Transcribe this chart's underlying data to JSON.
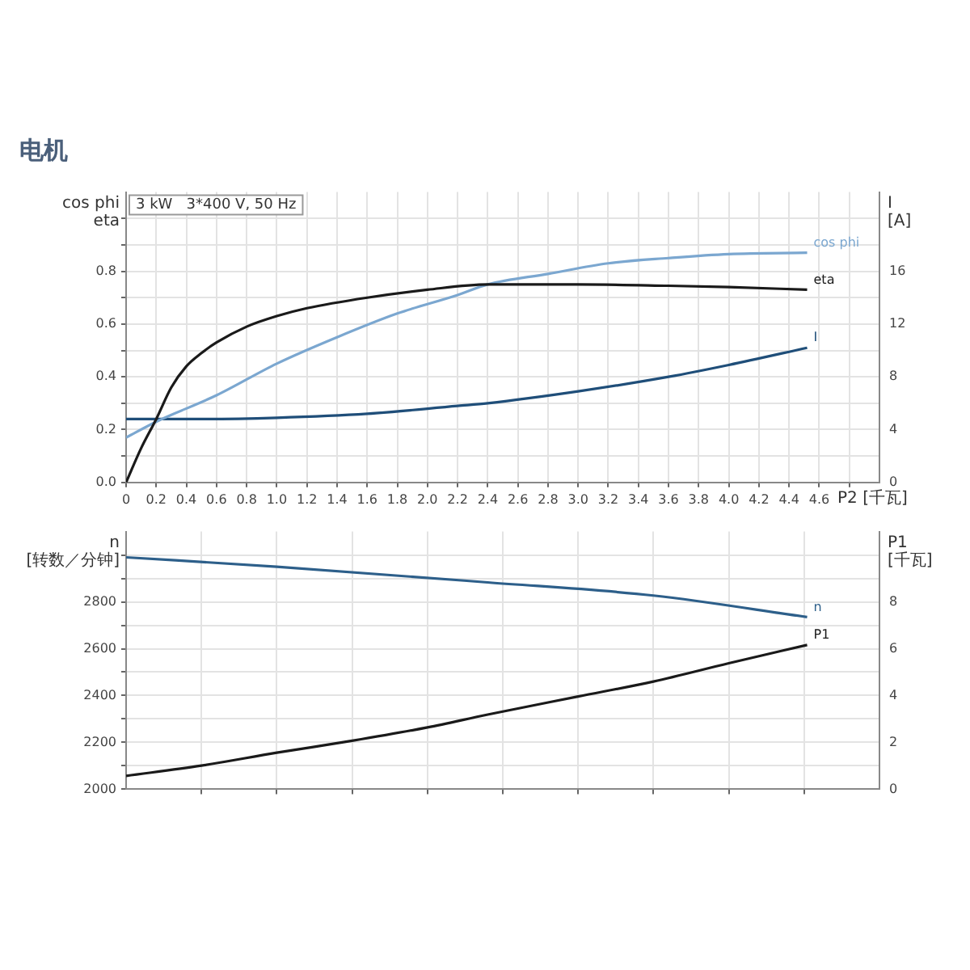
{
  "chart_data": [
    {
      "type": "line",
      "title": "电机",
      "xlabel": "P2 [千瓦]",
      "ylabel": "cos phi\neta",
      "y2label": "I\n[A]",
      "annotations": [
        "3 kW   3*400 V, 50 Hz"
      ],
      "xlim": [
        0,
        5
      ],
      "ylim": [
        0,
        1.1
      ],
      "y2lim": [
        0,
        22
      ],
      "xticks": [
        0,
        0.2,
        0.4,
        0.6,
        0.8,
        {
          "value": 1,
          "label": "1.0"
        },
        1.2,
        1.4,
        1.6,
        1.8,
        {
          "value": 2,
          "label": "2.0"
        },
        2.2,
        2.4,
        2.6,
        2.8,
        {
          "value": 3,
          "label": "3.0"
        },
        3.2,
        3.4,
        3.6,
        3.8,
        {
          "value": 4,
          "label": "4.0"
        },
        4.2,
        4.4,
        4.6,
        {
          "value": 4.8,
          "label": null
        }
      ],
      "yticks": [
        {
          "value": 0,
          "label": "0.0"
        },
        {
          "value": 0.1,
          "label": null
        },
        0.2,
        {
          "value": 0.3,
          "label": null
        },
        0.4,
        {
          "value": 0.5,
          "label": null
        },
        0.6,
        {
          "value": 0.7,
          "label": null
        },
        0.8,
        {
          "value": 0.9,
          "label": null
        },
        {
          "value": 1,
          "label": null
        }
      ],
      "y2ticks": [
        0,
        4,
        8,
        12,
        16
      ],
      "grid": true,
      "marker": "none",
      "line_style": "solid",
      "legend": false,
      "series": [
        {
          "name": "eta",
          "color": "#1a1a1a",
          "x": [
            0,
            0.1,
            0.2,
            0.3,
            0.4,
            0.5,
            0.6,
            0.8,
            1.0,
            1.2,
            1.6,
            2.0,
            2.4,
            3.0,
            3.6,
            4.0,
            4.52
          ],
          "values": [
            0,
            0.13,
            0.24,
            0.36,
            0.44,
            0.49,
            0.53,
            0.59,
            0.63,
            0.66,
            0.7,
            0.73,
            0.75,
            0.75,
            0.745,
            0.74,
            0.73
          ]
        },
        {
          "name": "cos phi",
          "color": "#7ba7d0",
          "x": [
            0,
            0.2,
            0.6,
            1.0,
            1.4,
            1.8,
            2.2,
            2.4,
            2.8,
            3.2,
            3.6,
            4.0,
            4.52
          ],
          "values": [
            0.17,
            0.23,
            0.33,
            0.45,
            0.55,
            0.64,
            0.71,
            0.75,
            0.79,
            0.83,
            0.85,
            0.865,
            0.87
          ]
        },
        {
          "name": "I",
          "color": "#1f4e79",
          "axis": "y2",
          "x": [
            0,
            0.5,
            1.0,
            1.6,
            2.2,
            2.4,
            3.0,
            3.6,
            4.0,
            4.52
          ],
          "values": [
            4.8,
            4.8,
            4.9,
            5.2,
            5.8,
            6.0,
            6.9,
            8.0,
            8.9,
            10.2
          ]
        }
      ]
    },
    {
      "type": "line",
      "ylabel": "n\n[转数／分钟]",
      "y2label": "P1\n[千瓦]",
      "tick_labels": "y",
      "xlim": [
        0,
        5
      ],
      "ylim": [
        2000,
        3100
      ],
      "y2lim": [
        0,
        11
      ],
      "xticks": [
        {
          "value": 0.5,
          "label": null
        },
        {
          "value": 1,
          "label": null
        },
        {
          "value": 1.5,
          "label": null
        },
        {
          "value": 2,
          "label": null
        },
        {
          "value": 2.5,
          "label": null
        },
        {
          "value": 3,
          "label": null
        },
        {
          "value": 3.5,
          "label": null
        },
        {
          "value": 4,
          "label": null
        },
        {
          "value": 4.5,
          "label": null
        }
      ],
      "yticks": [
        2000,
        {
          "value": 2100,
          "label": null
        },
        2200,
        {
          "value": 2300,
          "label": null
        },
        2400,
        {
          "value": 2500,
          "label": null
        },
        2600,
        {
          "value": 2700,
          "label": null
        },
        2800,
        {
          "value": 2900,
          "label": null
        },
        {
          "value": 3000,
          "label": null
        }
      ],
      "y2ticks": [
        0,
        2,
        4,
        6,
        8
      ],
      "grid": true,
      "marker": "none",
      "line_style": "solid",
      "legend": false,
      "series": [
        {
          "name": "n",
          "color": "#2d5f8a",
          "x": [
            0,
            1.0,
            2.4,
            3.5,
            4.52
          ],
          "values": [
            2990,
            2950,
            2883,
            2827,
            2735
          ]
        },
        {
          "name": "P1",
          "color": "#1a1a1a",
          "axis": "y2",
          "x": [
            0,
            0.5,
            1.0,
            1.5,
            2.0,
            2.4,
            3.0,
            3.5,
            4.0,
            4.52
          ],
          "values": [
            0.57,
            1.01,
            1.56,
            2.07,
            2.64,
            3.19,
            3.96,
            4.6,
            5.38,
            6.16
          ]
        }
      ]
    }
  ]
}
